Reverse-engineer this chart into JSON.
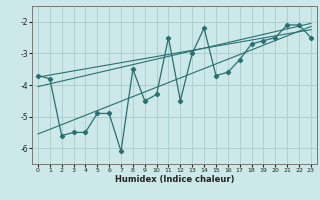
{
  "xlabel": "Humidex (Indice chaleur)",
  "background_color": "#cce8e8",
  "grid_color": "#aacccc",
  "line_color": "#2a7070",
  "xlim": [
    -0.5,
    23.5
  ],
  "ylim": [
    -6.5,
    -1.5
  ],
  "xticks": [
    0,
    1,
    2,
    3,
    4,
    5,
    6,
    7,
    8,
    9,
    10,
    11,
    12,
    13,
    14,
    15,
    16,
    17,
    18,
    19,
    20,
    21,
    22,
    23
  ],
  "yticks": [
    -6,
    -5,
    -4,
    -3,
    -2
  ],
  "series": [
    [
      0,
      -3.7
    ],
    [
      1,
      -3.8
    ],
    [
      2,
      -5.6
    ],
    [
      3,
      -5.5
    ],
    [
      4,
      -5.5
    ],
    [
      5,
      -4.9
    ],
    [
      6,
      -4.9
    ],
    [
      7,
      -6.1
    ],
    [
      8,
      -3.5
    ],
    [
      9,
      -4.5
    ],
    [
      10,
      -4.3
    ],
    [
      11,
      -2.5
    ],
    [
      12,
      -4.5
    ],
    [
      13,
      -3.0
    ],
    [
      14,
      -2.2
    ],
    [
      15,
      -3.7
    ],
    [
      16,
      -3.6
    ],
    [
      17,
      -3.2
    ],
    [
      18,
      -2.7
    ],
    [
      19,
      -2.6
    ],
    [
      20,
      -2.5
    ],
    [
      21,
      -2.1
    ],
    [
      22,
      -2.1
    ],
    [
      23,
      -2.5
    ]
  ],
  "regression_lines": [
    {
      "x": [
        0,
        23
      ],
      "y": [
        -3.75,
        -2.25
      ]
    },
    {
      "x": [
        0,
        23
      ],
      "y": [
        -4.05,
        -2.05
      ]
    },
    {
      "x": [
        0,
        23
      ],
      "y": [
        -5.55,
        -2.15
      ]
    }
  ]
}
